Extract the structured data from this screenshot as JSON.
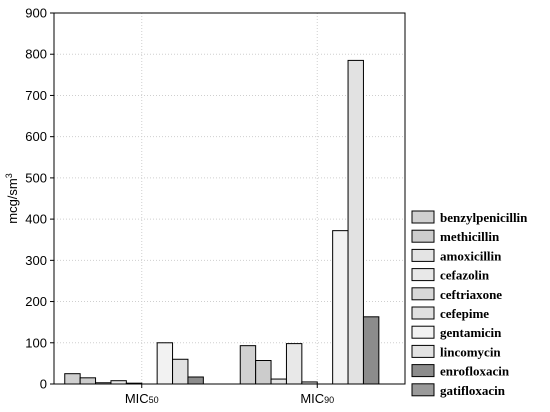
{
  "chart_data": {
    "type": "bar",
    "categories": [
      "MIC50",
      "MIC90"
    ],
    "category_display": [
      {
        "main": "MIC",
        "sub": "50"
      },
      {
        "main": "MIC",
        "sub": "90"
      }
    ],
    "ylabel": {
      "main": "mcg/sm",
      "sup": "3"
    },
    "ylim": [
      0,
      900
    ],
    "yticks": [
      "0",
      "100",
      "200",
      "300",
      "400",
      "500",
      "600",
      "700",
      "800",
      "900"
    ],
    "grid": true,
    "legend_position": "right",
    "series": [
      {
        "name": "benzylpenicillin",
        "values": [
          25,
          93
        ],
        "color": "#d0d0d0"
      },
      {
        "name": "methicillin",
        "values": [
          15,
          57
        ],
        "color": "#cccccc"
      },
      {
        "name": "amoxicillin",
        "values": [
          3,
          12
        ],
        "color": "#e4e4e4"
      },
      {
        "name": "cefazolin",
        "values": [
          8,
          98
        ],
        "color": "#e8e8e8"
      },
      {
        "name": "ceftriaxone",
        "values": [
          2,
          5
        ],
        "color": "#d8d8d8"
      },
      {
        "name": "cefepime",
        "values": [
          0,
          0
        ],
        "color": "#e0e0e0"
      },
      {
        "name": "gentamicin",
        "values": [
          100,
          372
        ],
        "color": "#f2f2f2"
      },
      {
        "name": "lincomycin",
        "values": [
          60,
          785
        ],
        "color": "#e2e2e2"
      },
      {
        "name": "enrofloxacin",
        "values": [
          17,
          163
        ],
        "color": "#8c8c8c"
      },
      {
        "name": "gatifloxacin",
        "values": [
          0,
          0
        ],
        "color": "#9a9a9a"
      }
    ]
  }
}
